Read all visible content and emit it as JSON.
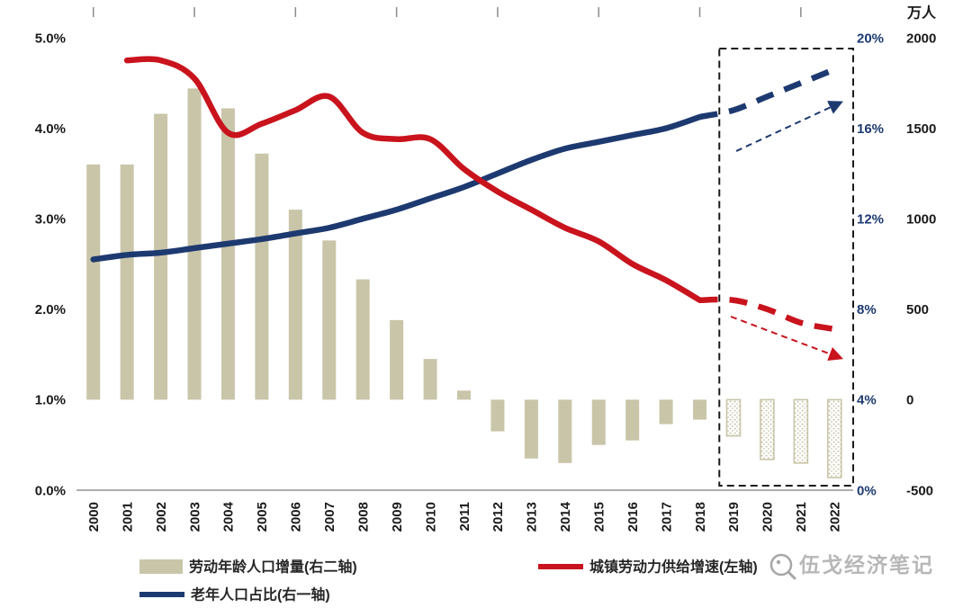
{
  "unit_label": "万人",
  "watermark": {
    "text": "伍戈经济笔记"
  },
  "legend": {
    "items": [
      {
        "label": "劳动年龄人口增量(右二轴)",
        "swatch": "bar"
      },
      {
        "label": "城镇劳动力供给增速(左轴)",
        "swatch": "line-red"
      },
      {
        "label": "老年人口占比(右一轴)",
        "swatch": "line-blue"
      }
    ]
  },
  "colors": {
    "bar": "#c9c5a9",
    "red_line": "#c9131d",
    "blue_line": "#1d3a70",
    "axis_text": "#1a1a1a",
    "blue_axis_text": "#1d3a70"
  },
  "chart_data": {
    "type": "combo",
    "title": "",
    "categories": [
      2000,
      2001,
      2002,
      2003,
      2004,
      2005,
      2006,
      2007,
      2008,
      2009,
      2010,
      2011,
      2012,
      2013,
      2014,
      2015,
      2016,
      2017,
      2018,
      2019,
      2020,
      2021,
      2022
    ],
    "series": [
      {
        "name": "劳动年龄人口增量(右二轴)",
        "type": "bar",
        "axis": "right2",
        "color": "#c9c5a9",
        "forecast_from_index": 19,
        "values": [
          1300,
          1300,
          1580,
          1720,
          1610,
          1360,
          1050,
          880,
          665,
          440,
          225,
          50,
          -175,
          -325,
          -350,
          -250,
          -225,
          -135,
          -110,
          -200,
          -330,
          -350,
          -430
        ]
      },
      {
        "name": "城镇劳动力供给增速(左轴)",
        "type": "line",
        "axis": "left",
        "color": "#c9131d",
        "dashed_from_index": 18,
        "values": [
          null,
          4.75,
          4.75,
          4.55,
          3.95,
          4.05,
          4.2,
          4.35,
          3.95,
          3.88,
          3.88,
          3.55,
          3.3,
          3.1,
          2.9,
          2.75,
          2.5,
          2.32,
          2.1,
          2.1,
          2.0,
          1.85,
          1.78
        ]
      },
      {
        "name": "老年人口占比(右一轴)",
        "type": "line",
        "axis": "right1",
        "color": "#1d3a70",
        "dashed_from_index": 18,
        "values": [
          10.2,
          10.4,
          10.5,
          10.7,
          10.9,
          11.1,
          11.35,
          11.6,
          12.0,
          12.4,
          12.9,
          13.4,
          14.0,
          14.6,
          15.1,
          15.4,
          15.7,
          16.0,
          16.5,
          16.8,
          17.4,
          18.0,
          18.6
        ]
      }
    ],
    "axes": {
      "left": {
        "ticks": [
          "5.0%",
          "4.0%",
          "3.0%",
          "2.0%",
          "1.0%",
          "0.0%"
        ],
        "min": 0,
        "max": 5
      },
      "right1": {
        "ticks": [
          "20%",
          "16%",
          "12%",
          "8%",
          "4%",
          "0%"
        ],
        "min": 0,
        "max": 20
      },
      "right2": {
        "ticks": [
          "2000",
          "1500",
          "1000",
          "500",
          "0",
          "-500"
        ],
        "min": -500,
        "max": 2000
      }
    },
    "forecast_box": {
      "from_year": 2019,
      "to_year": 2022
    },
    "annotations": [
      {
        "type": "arrow",
        "color": "#1d3a70",
        "direction": "up-right"
      },
      {
        "type": "arrow",
        "color": "#c9131d",
        "direction": "down-right"
      }
    ],
    "legend_position": "bottom",
    "grid": false
  }
}
